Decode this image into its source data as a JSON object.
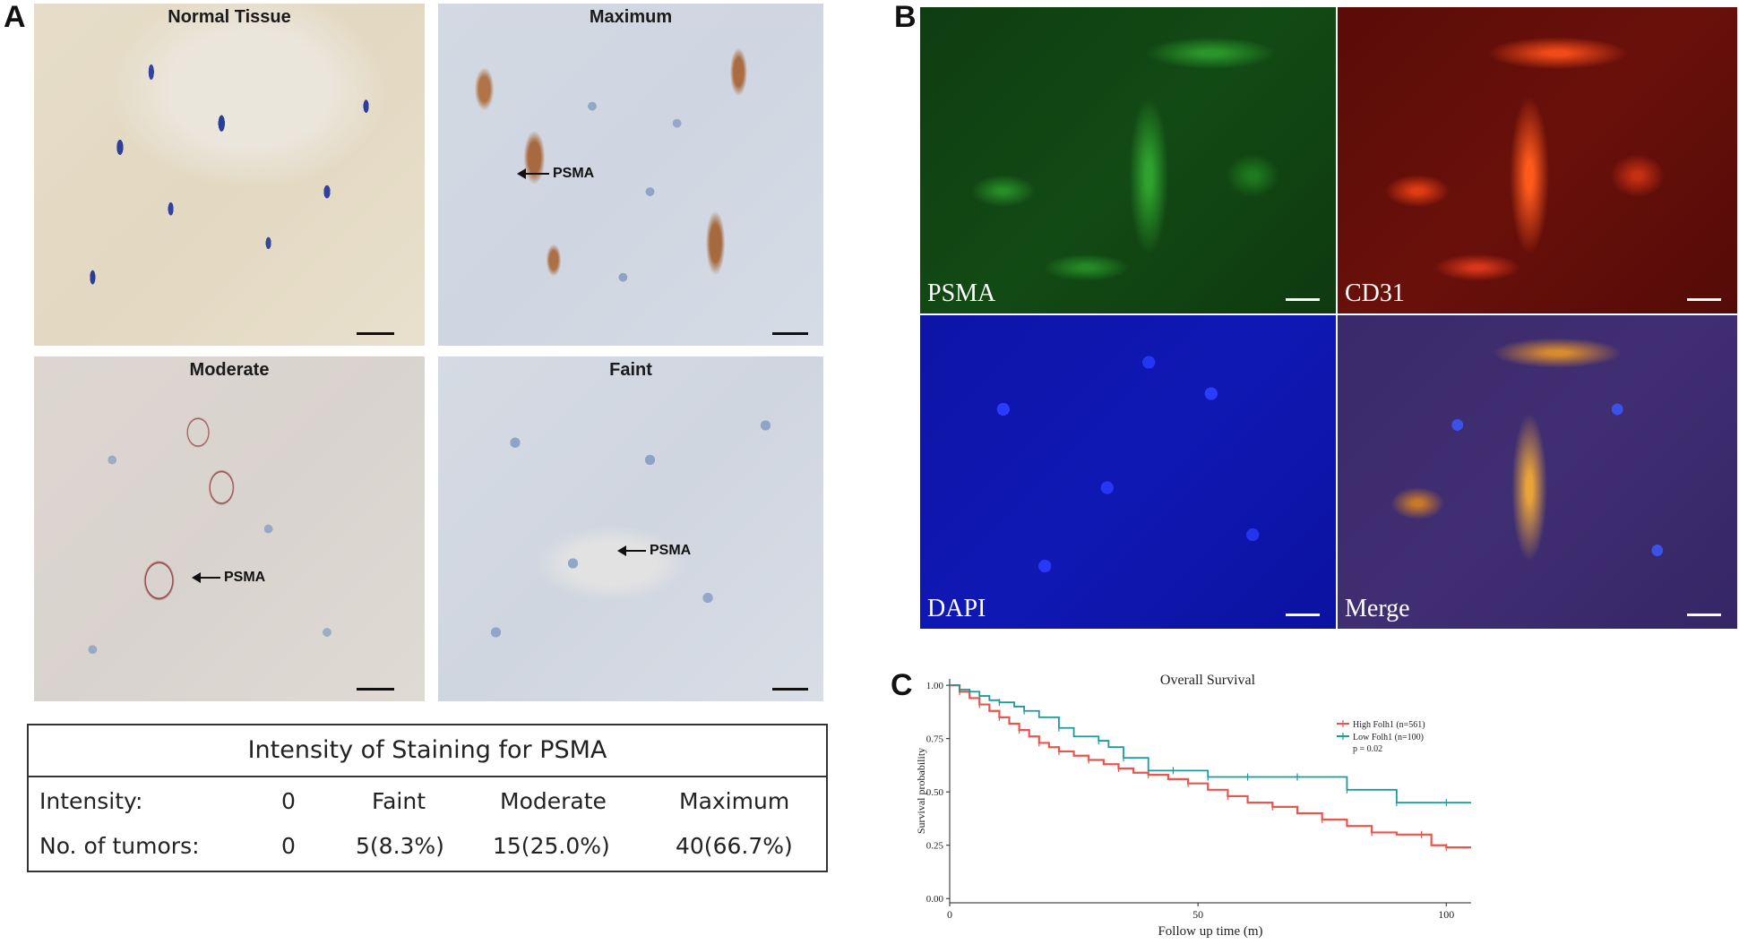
{
  "panels": {
    "a_label": "A",
    "b_label": "B",
    "c_label": "C"
  },
  "ihc": {
    "normal_title": "Normal Tissue",
    "maximum_title": "Maximum",
    "moderate_title": "Moderate",
    "faint_title": "Faint",
    "arrow_label": "PSMA"
  },
  "fluorescence": {
    "psma_label": "PSMA",
    "cd31_label": "CD31",
    "dapi_label": "DAPI",
    "merge_label": "Merge"
  },
  "staining_table": {
    "title": "Intensity of Staining for PSMA",
    "row1": [
      "Intensity:",
      "0",
      "Faint",
      "Moderate",
      "Maximum"
    ],
    "row2": [
      "No. of tumors:",
      "0",
      "5(8.3%)",
      "15(25.0%)",
      "40(66.7%)"
    ]
  },
  "chart_data": {
    "type": "line",
    "title": "Overall Survival",
    "xlabel": "Follow up time (m)",
    "ylabel": "Survival probability",
    "xlim": [
      0,
      105
    ],
    "ylim": [
      0,
      1.0
    ],
    "x_ticks": [
      "0",
      "50",
      "100"
    ],
    "y_ticks": [
      "0.00",
      "0.25",
      "0.50",
      "0.75",
      "1.00"
    ],
    "legend_position": "right",
    "annotation": "p = 0.02",
    "series": [
      {
        "name": "High Folh1 (n=561)",
        "color": "#e8574f",
        "x": [
          0,
          2,
          4,
          6,
          8,
          10,
          12,
          14,
          16,
          18,
          20,
          22,
          25,
          28,
          31,
          34,
          37,
          40,
          44,
          48,
          52,
          56,
          60,
          65,
          70,
          75,
          80,
          85,
          90,
          95,
          97,
          100,
          105
        ],
        "y": [
          1.0,
          0.97,
          0.94,
          0.91,
          0.88,
          0.85,
          0.82,
          0.79,
          0.76,
          0.73,
          0.71,
          0.69,
          0.67,
          0.65,
          0.63,
          0.61,
          0.59,
          0.58,
          0.56,
          0.54,
          0.51,
          0.48,
          0.45,
          0.43,
          0.4,
          0.37,
          0.34,
          0.31,
          0.3,
          0.3,
          0.25,
          0.24,
          0.24
        ]
      },
      {
        "name": "Low Folh1 (n=100)",
        "color": "#1e9a9a",
        "x": [
          0,
          2,
          4,
          6,
          8,
          10,
          13,
          15,
          18,
          22,
          25,
          30,
          32,
          35,
          40,
          45,
          50,
          52,
          56,
          60,
          65,
          70,
          75,
          80,
          85,
          90,
          95,
          100,
          105
        ],
        "y": [
          1.0,
          0.98,
          0.97,
          0.95,
          0.93,
          0.92,
          0.9,
          0.88,
          0.85,
          0.8,
          0.76,
          0.74,
          0.71,
          0.66,
          0.6,
          0.6,
          0.6,
          0.57,
          0.57,
          0.57,
          0.57,
          0.57,
          0.57,
          0.51,
          0.51,
          0.45,
          0.45,
          0.45,
          0.45
        ]
      }
    ]
  }
}
